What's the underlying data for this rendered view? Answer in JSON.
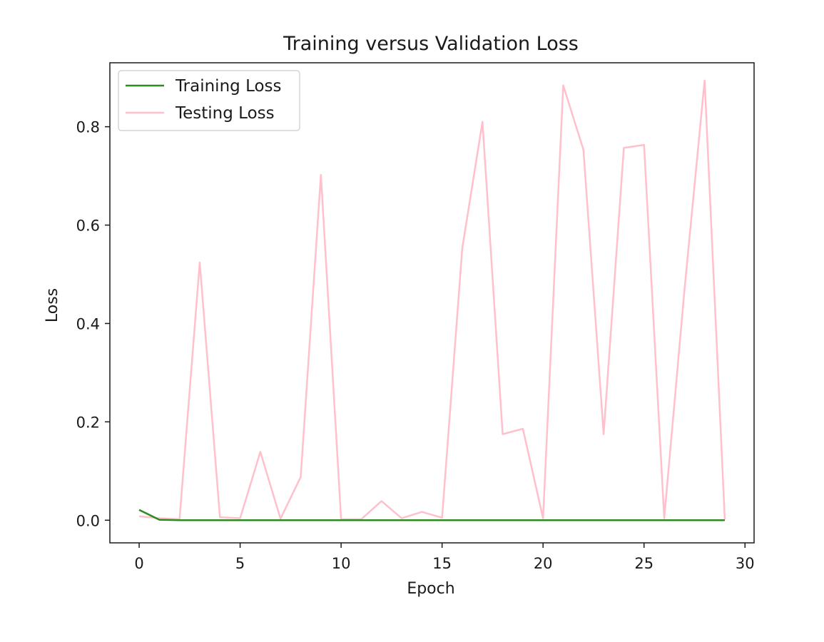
{
  "chart_data": {
    "type": "line",
    "title": "Training versus Validation Loss",
    "xlabel": "Epoch",
    "ylabel": "Loss",
    "xlim": [
      -1.45,
      30.45
    ],
    "ylim": [
      -0.046,
      0.93
    ],
    "xticks": [
      0,
      5,
      10,
      15,
      20,
      25,
      30
    ],
    "yticks": [
      0.0,
      0.2,
      0.4,
      0.6,
      0.8
    ],
    "ytick_labels": [
      "0.0",
      "0.2",
      "0.4",
      "0.6",
      "0.8"
    ],
    "grid": false,
    "legend_position": "top-left",
    "x": [
      0,
      1,
      2,
      3,
      4,
      5,
      6,
      7,
      8,
      9,
      10,
      11,
      12,
      13,
      14,
      15,
      16,
      17,
      18,
      19,
      20,
      21,
      22,
      23,
      24,
      25,
      26,
      27,
      28,
      29
    ],
    "series": [
      {
        "name": "Training Loss",
        "color": "#2e8b22",
        "values": [
          0.021,
          0.001,
          0.0,
          0.0,
          0.0,
          0.0,
          0.0,
          0.0,
          0.0,
          0.0,
          0.0,
          0.0,
          0.0,
          0.0,
          0.0,
          0.0,
          0.0,
          0.0,
          0.0,
          0.0,
          0.0,
          0.0,
          0.0,
          0.0,
          0.0,
          0.0,
          0.0,
          0.0,
          0.0,
          0.0
        ]
      },
      {
        "name": "Testing Loss",
        "color": "#ffc0cb",
        "values": [
          0.008,
          0.004,
          0.002,
          0.524,
          0.006,
          0.004,
          0.139,
          0.003,
          0.088,
          0.702,
          0.002,
          0.002,
          0.039,
          0.004,
          0.017,
          0.005,
          0.553,
          0.81,
          0.175,
          0.186,
          0.004,
          0.884,
          0.753,
          0.175,
          0.757,
          0.763,
          0.004,
          0.467,
          0.894,
          0.001
        ]
      }
    ]
  }
}
